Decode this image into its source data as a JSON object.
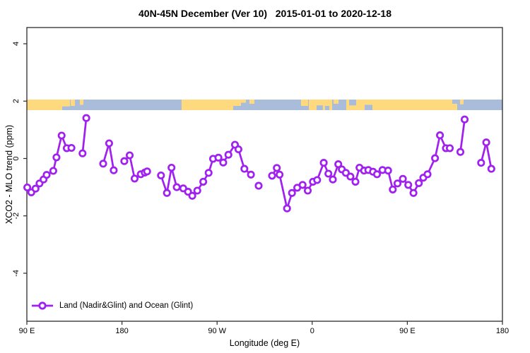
{
  "title": "40N-45N December (Ver 10)   2015-01-01 to 2020-12-18",
  "legend": {
    "label": "Land (Nadir&Glint) and Ocean (Glint)"
  },
  "colors": {
    "series": "#A020F0",
    "marker_fill": "#ffffff",
    "land": "#FFD97E",
    "ocean": "#A9BDDB",
    "frame": "#2b2b2b",
    "text": "#000000"
  },
  "chart_data": {
    "type": "line",
    "title": "40N-45N December (Ver 10)   2015-01-01 to 2020-12-18",
    "xlabel": "Longitude (deg E)",
    "ylabel": "XCO2 - MLO trend (ppm)",
    "grid": false,
    "legend_position": "bottom-left",
    "x_axis": {
      "range": [
        90,
        540
      ],
      "note": "longitude axis wraps eastward: 90E..180..90W..0..90E..180",
      "ticks": [
        {
          "x": 90,
          "label": "90 E"
        },
        {
          "x": 180,
          "label": "180"
        },
        {
          "x": 270,
          "label": "90 W"
        },
        {
          "x": 360,
          "label": "0"
        },
        {
          "x": 450,
          "label": "90 E"
        },
        {
          "x": 540,
          "label": "180"
        }
      ]
    },
    "y_axis": {
      "range": [
        -5.7,
        4.6
      ],
      "ticks": [
        {
          "v": -4,
          "label": "-4"
        },
        {
          "v": -2,
          "label": "-2"
        },
        {
          "v": 0,
          "label": "0"
        },
        {
          "v": 2,
          "label": "2"
        },
        {
          "v": 4,
          "label": "4"
        }
      ]
    },
    "surface_band": {
      "description": "land/ocean strip for 40N-45N latitude band",
      "y_top": 2.06,
      "y_bottom": 1.69,
      "land_segments": [
        {
          "from": 90.0,
          "to": 130.8,
          "frac": 1.0,
          "align": "full"
        },
        {
          "from": 131.5,
          "to": 135.5,
          "frac": 0.6,
          "align": "top"
        },
        {
          "from": 140.1,
          "to": 143.5,
          "frac": 0.5,
          "align": "top"
        },
        {
          "from": 236.4,
          "to": 285.2,
          "frac": 1.0,
          "align": "full"
        },
        {
          "from": 285.2,
          "to": 292.6,
          "frac": 0.6,
          "align": "top"
        },
        {
          "from": 292.6,
          "to": 297.3,
          "frac": 0.3,
          "align": "top"
        },
        {
          "from": 300.6,
          "to": 305.3,
          "frac": 0.4,
          "align": "top"
        },
        {
          "from": 349.4,
          "to": 356.1,
          "frac": 0.6,
          "align": "top"
        },
        {
          "from": 356.8,
          "to": 378.9,
          "frac": 1.0,
          "align": "full"
        },
        {
          "from": 380.2,
          "to": 384.9,
          "frac": 0.4,
          "align": "top"
        },
        {
          "from": 392.2,
          "to": 492.5,
          "frac": 1.0,
          "align": "full"
        },
        {
          "from": 492.5,
          "to": 497.2,
          "frac": 0.6,
          "align": "bottom"
        },
        {
          "from": 499.9,
          "to": 503.2,
          "frac": 0.45,
          "align": "top"
        }
      ],
      "ocean_patches": [
        {
          "from": 123.4,
          "to": 130.8,
          "frac": 0.35,
          "align": "bottom"
        },
        {
          "from": 364.1,
          "to": 370.1,
          "frac": 0.45,
          "align": "bottom"
        },
        {
          "from": 372.1,
          "to": 376.2,
          "frac": 0.4,
          "align": "bottom"
        },
        {
          "from": 394.9,
          "to": 401.6,
          "frac": 0.55,
          "align": "top"
        },
        {
          "from": 409.6,
          "to": 417.0,
          "frac": 0.5,
          "align": "bottom"
        }
      ]
    },
    "series": [
      {
        "name": "Land (Nadir&Glint) and Ocean (Glint)",
        "color": "#A020F0",
        "marker": "open-circle",
        "segments": [
          [
            [
              90.4,
              -1.01
            ],
            [
              94.2,
              -1.18
            ],
            [
              98.2,
              -1.05
            ],
            [
              102.0,
              -0.87
            ],
            [
              105.8,
              -0.73
            ],
            [
              108.7,
              -0.57
            ],
            [
              115.0,
              -0.43
            ],
            [
              118.0,
              0.04
            ],
            [
              122.9,
              0.8
            ],
            [
              127.8,
              0.36
            ],
            [
              132.2,
              0.37
            ]
          ],
          [
            [
              142.7,
              0.18
            ],
            [
              146.2,
              1.41
            ]
          ],
          [
            [
              162.2,
              -0.18
            ],
            [
              167.8,
              0.53
            ],
            [
              172.2,
              -0.41
            ]
          ],
          [
            [
              182.2,
              -0.09
            ],
            [
              187.3,
              0.11
            ],
            [
              192.0,
              -0.7
            ],
            [
              197.8,
              -0.55
            ],
            [
              201.5,
              -0.49
            ],
            [
              203.8,
              -0.45
            ]
          ],
          [
            [
              216.9,
              -0.59
            ],
            [
              222.5,
              -1.2
            ],
            [
              226.9,
              -0.32
            ],
            [
              231.8,
              -1.0
            ],
            [
              238.0,
              -1.04
            ],
            [
              242.5,
              -1.16
            ],
            [
              246.5,
              -1.3
            ],
            [
              251.3,
              -1.12
            ],
            [
              256.9,
              -0.81
            ],
            [
              262.0,
              -0.5
            ],
            [
              266.2,
              -0.01
            ],
            [
              271.3,
              0.03
            ],
            [
              275.8,
              -0.14
            ],
            [
              280.7,
              0.13
            ],
            [
              286.9,
              0.48
            ],
            [
              290.2,
              0.32
            ],
            [
              295.8,
              -0.36
            ],
            [
              302.0,
              -0.56
            ]
          ],
          [
            [
              309.3,
              -0.95
            ]
          ],
          [
            [
              322.0,
              -0.6
            ],
            [
              326.5,
              -0.33
            ],
            [
              329.1,
              -0.56
            ],
            [
              336.2,
              -1.74
            ],
            [
              340.9,
              -1.2
            ],
            [
              345.8,
              -1.02
            ],
            [
              350.9,
              -0.92
            ],
            [
              355.8,
              -1.12
            ],
            [
              360.7,
              -0.81
            ],
            [
              364.7,
              -0.75
            ],
            [
              370.9,
              -0.15
            ],
            [
              375.3,
              -0.53
            ],
            [
              379.5,
              -0.73
            ],
            [
              384.7,
              -0.2
            ],
            [
              388.0,
              -0.38
            ],
            [
              391.8,
              -0.5
            ],
            [
              396.2,
              -0.63
            ],
            [
              400.9,
              -0.81
            ],
            [
              404.7,
              -0.32
            ],
            [
              409.1,
              -0.42
            ],
            [
              413.1,
              -0.4
            ],
            [
              417.5,
              -0.46
            ],
            [
              421.3,
              -0.55
            ],
            [
              426.5,
              -0.4
            ],
            [
              431.8,
              -0.42
            ],
            [
              436.2,
              -1.08
            ],
            [
              440.7,
              -0.87
            ],
            [
              445.8,
              -0.71
            ],
            [
              450.9,
              -0.92
            ],
            [
              455.8,
              -1.2
            ],
            [
              460.9,
              -0.86
            ],
            [
              465.1,
              -0.67
            ],
            [
              469.1,
              -0.55
            ],
            [
              476.2,
              0.01
            ],
            [
              480.9,
              0.81
            ],
            [
              486.5,
              0.36
            ],
            [
              490.2,
              0.36
            ]
          ],
          [
            [
              500.2,
              0.23
            ],
            [
              504.2,
              1.36
            ]
          ],
          [
            [
              519.8,
              -0.15
            ],
            [
              524.7,
              0.56
            ],
            [
              529.5,
              -0.36
            ]
          ]
        ]
      }
    ]
  }
}
